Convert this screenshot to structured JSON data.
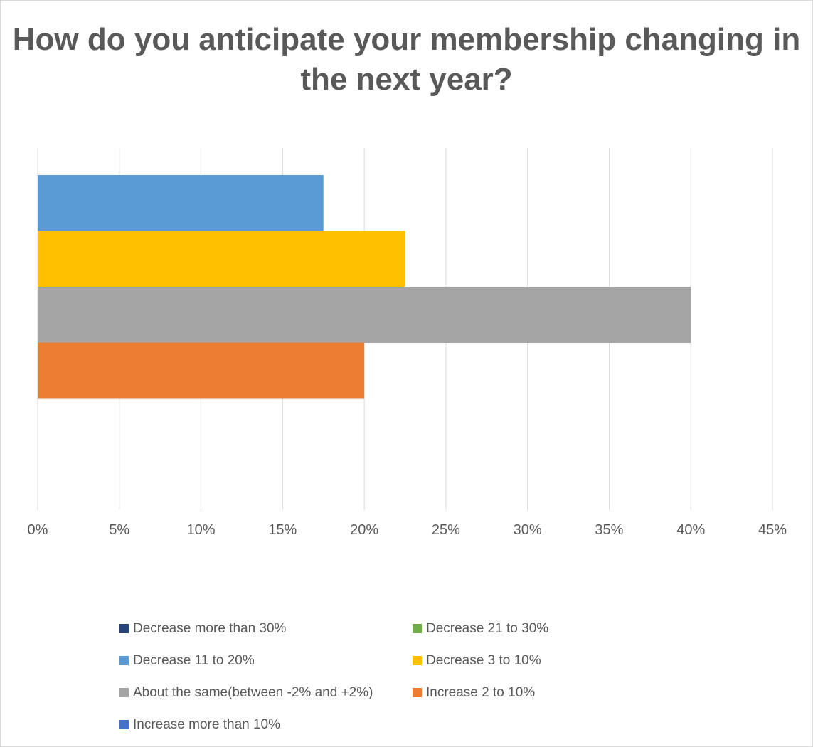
{
  "chart_data": {
    "type": "bar",
    "orientation": "horizontal",
    "title": "How do you anticipate your membership changing in the next year?",
    "xlabel": "",
    "ylabel": "",
    "xlim": [
      0,
      45
    ],
    "x_ticks": [
      "0%",
      "5%",
      "10%",
      "15%",
      "20%",
      "25%",
      "30%",
      "35%",
      "40%",
      "45%"
    ],
    "x_tick_values": [
      0,
      5,
      10,
      15,
      20,
      25,
      30,
      35,
      40,
      45
    ],
    "grid": "vertical",
    "legend_position": "bottom",
    "series": [
      {
        "name": "Decrease more than 30%",
        "value": 0,
        "color": "#264478"
      },
      {
        "name": "Decrease 21 to 30%",
        "value": 0,
        "color": "#70AD47"
      },
      {
        "name": "Decrease 11 to 20%",
        "value": 17.5,
        "color": "#5B9BD5"
      },
      {
        "name": "Decrease 3 to 10%",
        "value": 22.5,
        "color": "#FFC000"
      },
      {
        "name": "About the same(between -2% and +2%)",
        "value": 40,
        "color": "#A5A5A5"
      },
      {
        "name": "Increase 2 to 10%",
        "value": 20,
        "color": "#ED7D31"
      },
      {
        "name": "Increase more than 10%",
        "value": 0,
        "color": "#4472C4"
      }
    ]
  }
}
